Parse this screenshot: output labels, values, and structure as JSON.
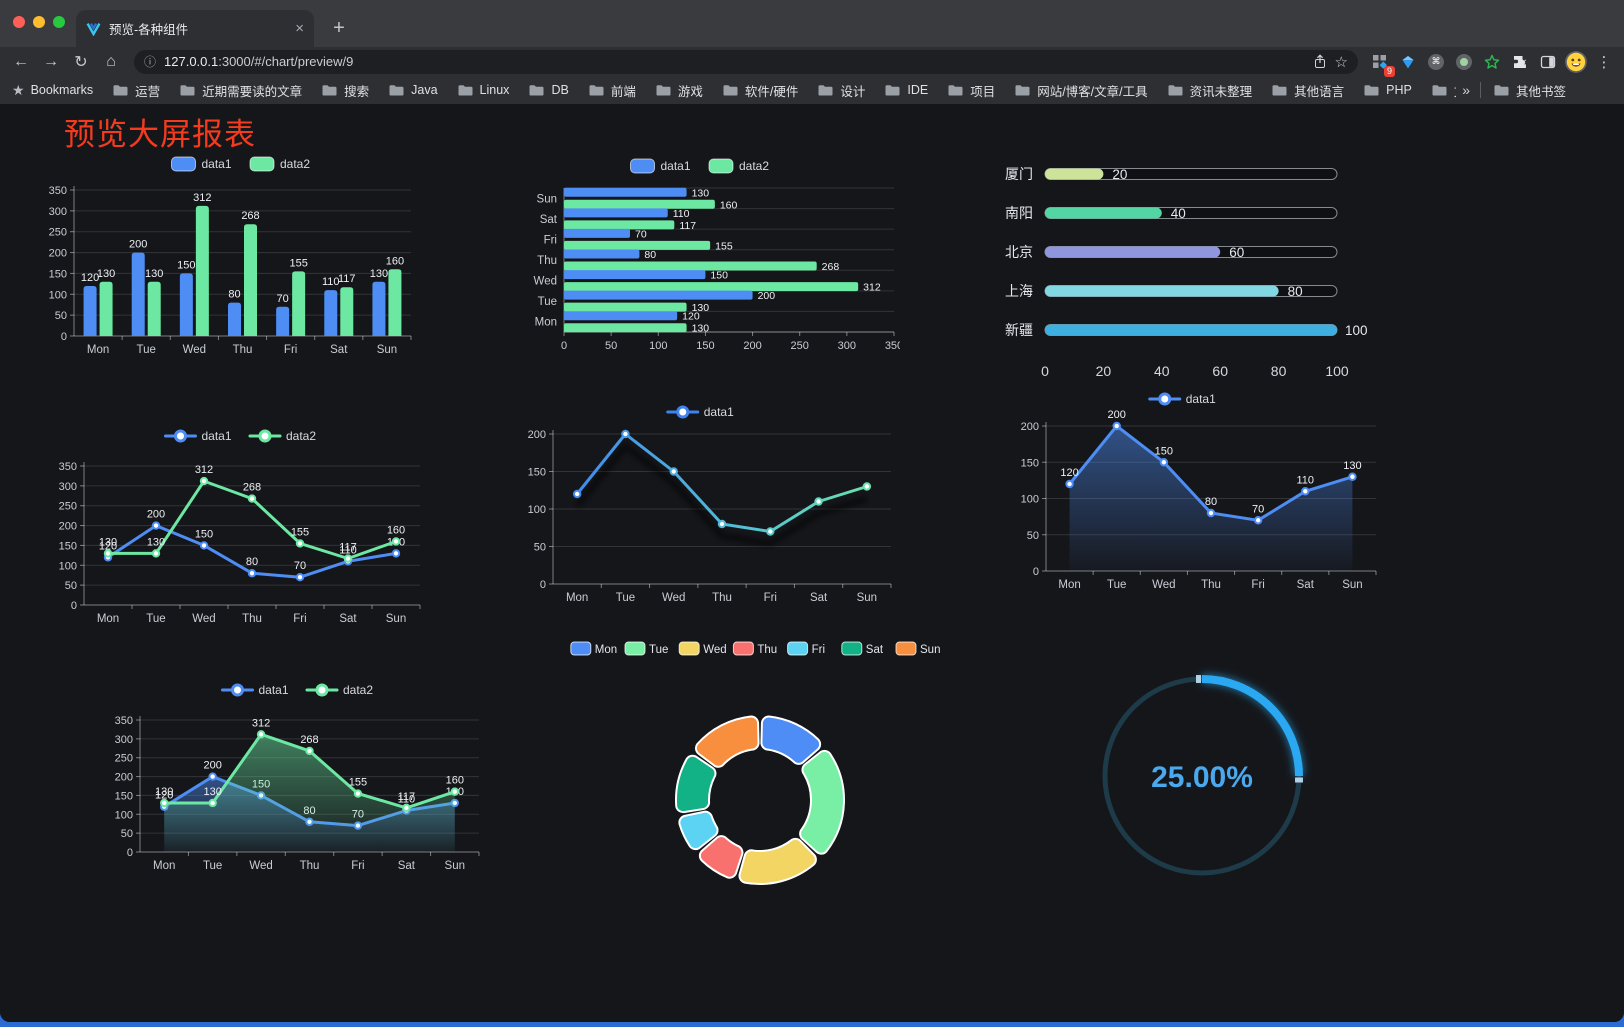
{
  "browser": {
    "tab_title": "预览-各种组件",
    "url_host": "127.0.0.1",
    "url_rest": ":3000/#/chart/preview/9",
    "extension_badge": "9",
    "other_bookmarks": "其他书签",
    "icons": {
      "back": "←",
      "forward": "→",
      "reload": "↻",
      "home": "⌂",
      "info": "ⓘ",
      "star": "☆",
      "menu": "⋮",
      "command": "⌘",
      "bookmarks_star": "★",
      "chevron": "»",
      "close": "×",
      "new_tab": "+"
    },
    "bookmarks": [
      {
        "icon": "star",
        "label": "Bookmarks"
      },
      {
        "icon": "folder",
        "label": "运营"
      },
      {
        "icon": "folder",
        "label": "近期需要读的文章"
      },
      {
        "icon": "folder",
        "label": "搜索"
      },
      {
        "icon": "folder",
        "label": "Java"
      },
      {
        "icon": "folder",
        "label": "Linux"
      },
      {
        "icon": "folder",
        "label": "DB"
      },
      {
        "icon": "folder",
        "label": "前端"
      },
      {
        "icon": "folder",
        "label": "游戏"
      },
      {
        "icon": "folder",
        "label": "软件/硬件"
      },
      {
        "icon": "folder",
        "label": "设计"
      },
      {
        "icon": "folder",
        "label": "IDE"
      },
      {
        "icon": "folder",
        "label": "项目"
      },
      {
        "icon": "folder",
        "label": "网站/博客/文章/工具"
      },
      {
        "icon": "folder",
        "label": "资讯未整理"
      },
      {
        "icon": "folder",
        "label": "其他语言"
      },
      {
        "icon": "folder",
        "label": "PHP"
      },
      {
        "icon": "folder",
        "label": "文件服务器"
      }
    ]
  },
  "page": {
    "title": "预览大屏报表",
    "title_color": "#f43b1e"
  },
  "chart_data": [
    {
      "id": "bar-vertical",
      "type": "bar",
      "categories": [
        "Mon",
        "Tue",
        "Wed",
        "Thu",
        "Fri",
        "Sat",
        "Sun"
      ],
      "series": [
        {
          "name": "data1",
          "color": "#4e8ef4",
          "values": [
            120,
            200,
            150,
            80,
            70,
            110,
            130
          ]
        },
        {
          "name": "data2",
          "color": "#6ce8a3",
          "values": [
            130,
            130,
            312,
            268,
            155,
            117,
            160
          ]
        }
      ],
      "ylim": [
        0,
        350
      ],
      "yticks": [
        0,
        50,
        100,
        150,
        200,
        250,
        300,
        350
      ],
      "grid": true,
      "legend_position": "top"
    },
    {
      "id": "bar-horizontal",
      "type": "bar-horizontal",
      "categories": [
        "Mon",
        "Tue",
        "Wed",
        "Thu",
        "Fri",
        "Sat",
        "Sun"
      ],
      "categories_display_top_to_bottom": [
        "Sun",
        "Sat",
        "Fri",
        "Thu",
        "Wed",
        "Tue",
        "Mon"
      ],
      "series": [
        {
          "name": "data1",
          "color": "#4e8ef4",
          "values": [
            120,
            200,
            150,
            80,
            70,
            110,
            130
          ]
        },
        {
          "name": "data2",
          "color": "#6ce8a3",
          "values": [
            130,
            130,
            312,
            268,
            155,
            117,
            160
          ]
        }
      ],
      "xlim": [
        0,
        350
      ],
      "xticks": [
        0,
        50,
        100,
        150,
        200,
        250,
        300,
        350
      ],
      "grid": true,
      "legend_position": "top"
    },
    {
      "id": "progress-cities",
      "type": "progress",
      "max": 100,
      "xticks": [
        0,
        20,
        40,
        60,
        80,
        100
      ],
      "items": [
        {
          "label": "厦门",
          "value": 20,
          "color": "#cde39a"
        },
        {
          "label": "南阳",
          "value": 40,
          "color": "#54d6a4"
        },
        {
          "label": "北京",
          "value": 60,
          "color": "#8f96dd"
        },
        {
          "label": "上海",
          "value": 80,
          "color": "#82d8e2"
        },
        {
          "label": "新疆",
          "value": 100,
          "color": "#3fafe0"
        }
      ]
    },
    {
      "id": "line-two",
      "type": "line",
      "categories": [
        "Mon",
        "Tue",
        "Wed",
        "Thu",
        "Fri",
        "Sat",
        "Sun"
      ],
      "series": [
        {
          "name": "data1",
          "color": "#4e8ef4",
          "values": [
            120,
            200,
            150,
            80,
            70,
            110,
            130
          ]
        },
        {
          "name": "data2",
          "color": "#6ce8a3",
          "values": [
            130,
            130,
            312,
            268,
            155,
            117,
            160
          ]
        }
      ],
      "ylim": [
        0,
        350
      ],
      "yticks": [
        0,
        50,
        100,
        150,
        200,
        250,
        300,
        350
      ],
      "show_labels": true,
      "legend_position": "top"
    },
    {
      "id": "line-gradient",
      "type": "line",
      "categories": [
        "Mon",
        "Tue",
        "Wed",
        "Thu",
        "Fri",
        "Sat",
        "Sun"
      ],
      "series": [
        {
          "name": "data1",
          "color": "#3f83f0",
          "color_end": "#6ce8a3",
          "values": [
            120,
            200,
            150,
            80,
            70,
            110,
            130
          ]
        }
      ],
      "ylim": [
        0,
        200
      ],
      "yticks": [
        0,
        50,
        100,
        150,
        200
      ],
      "show_labels": false,
      "gradient_line": true,
      "shadow": true,
      "legend_position": "top"
    },
    {
      "id": "line-area",
      "type": "line",
      "categories": [
        "Mon",
        "Tue",
        "Wed",
        "Thu",
        "Fri",
        "Sat",
        "Sun"
      ],
      "series": [
        {
          "name": "data1",
          "color": "#4e8ef4",
          "values": [
            120,
            200,
            150,
            80,
            70,
            110,
            130
          ],
          "area": true
        }
      ],
      "ylim": [
        0,
        200
      ],
      "yticks": [
        0,
        50,
        100,
        150,
        200
      ],
      "show_labels": true,
      "legend_position": "top"
    },
    {
      "id": "line-area-two",
      "type": "line",
      "categories": [
        "Mon",
        "Tue",
        "Wed",
        "Thu",
        "Fri",
        "Sat",
        "Sun"
      ],
      "series": [
        {
          "name": "data1",
          "color": "#4e8ef4",
          "values": [
            120,
            200,
            150,
            80,
            70,
            110,
            130
          ],
          "area": true
        },
        {
          "name": "data2",
          "color": "#6ce8a3",
          "values": [
            130,
            130,
            312,
            268,
            155,
            117,
            160
          ],
          "area": true
        }
      ],
      "ylim": [
        0,
        350
      ],
      "yticks": [
        0,
        50,
        100,
        150,
        200,
        250,
        300,
        350
      ],
      "show_labels": true,
      "legend_position": "top"
    },
    {
      "id": "pie-week",
      "type": "pie",
      "inner_radius_ratio": 0.61,
      "legend_position": "top",
      "slices": [
        {
          "label": "Mon",
          "value": 120,
          "color": "#4d8df5"
        },
        {
          "label": "Tue",
          "value": 200,
          "color": "#79efa5"
        },
        {
          "label": "Wed",
          "value": 150,
          "color": "#f3d564"
        },
        {
          "label": "Thu",
          "value": 80,
          "color": "#f9716f"
        },
        {
          "label": "Fri",
          "value": 70,
          "color": "#5cd3f2"
        },
        {
          "label": "Sat",
          "value": 110,
          "color": "#12b286"
        },
        {
          "label": "Sun",
          "value": 130,
          "color": "#f78f3f"
        }
      ]
    },
    {
      "id": "gauge-percent",
      "type": "gauge",
      "value": 25,
      "label": "25.00%",
      "color": "#2aa9f2",
      "track_color": "#1d3b49",
      "text_color": "#4aa9ee"
    }
  ]
}
